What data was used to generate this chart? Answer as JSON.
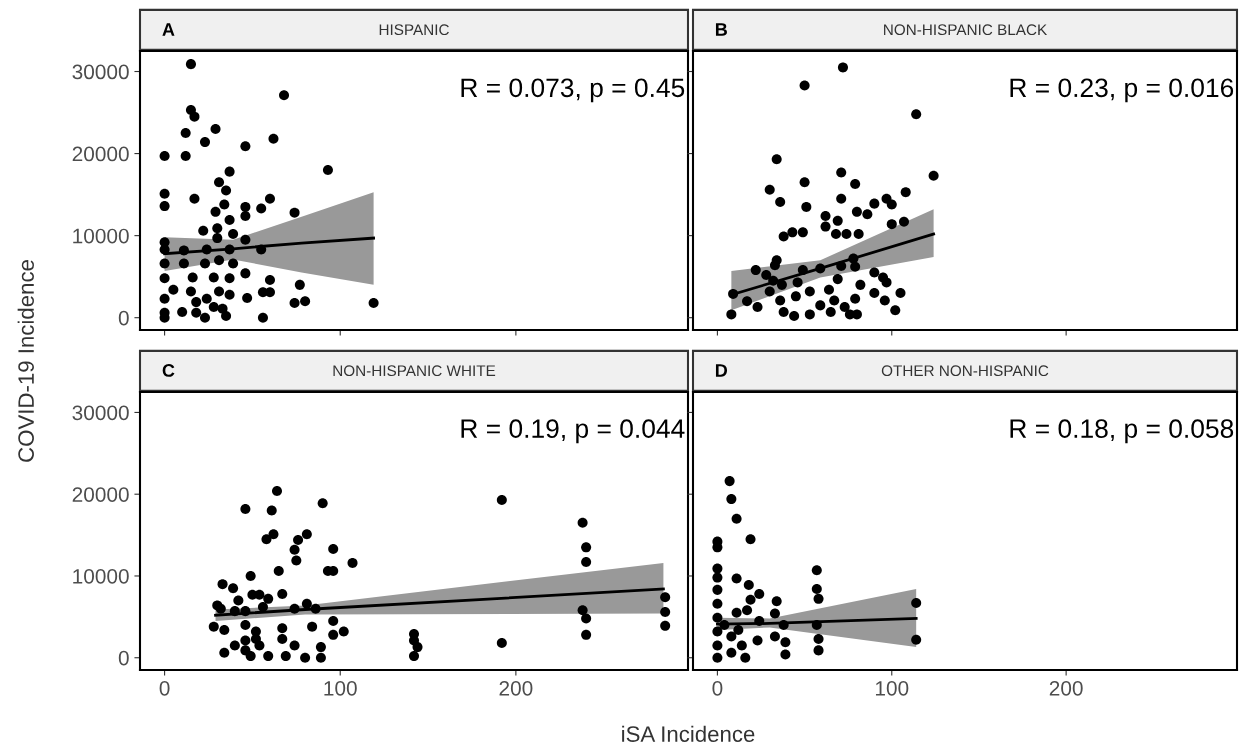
{
  "chart_data": [
    {
      "type": "scatter",
      "title": "HISPANIC",
      "ylabel": "COVID-19 Incidence",
      "annotations": [
        "A",
        "R = 0.073, p = 0.45"
      ],
      "tick_labels": "y",
      "xlim": [
        -14,
        298
      ],
      "ylim": [
        -1500,
        32500
      ],
      "xticks": [
        0,
        100,
        200
      ],
      "yticks": [
        0,
        10000,
        20000,
        30000
      ],
      "series": [
        {
          "marker": "circle",
          "color": "#000000",
          "x": [
            15,
            68,
            15,
            17,
            12,
            29,
            23,
            46,
            62,
            0,
            12,
            93,
            37,
            31,
            35,
            0,
            0,
            17,
            34,
            46,
            46,
            55,
            60,
            74,
            29,
            37,
            22,
            30,
            39,
            30,
            46,
            0,
            0,
            11,
            24,
            37,
            55,
            0,
            11,
            23,
            31,
            39,
            46,
            0,
            16,
            28,
            37,
            60,
            77,
            5,
            0,
            15,
            31,
            37,
            47,
            56,
            60,
            74,
            80,
            119,
            0,
            10,
            18,
            23,
            35,
            56,
            28,
            33,
            0,
            18,
            24
          ],
          "values": [
            30900,
            27100,
            25300,
            24500,
            22500,
            23000,
            21400,
            20900,
            21800,
            19700,
            19700,
            18000,
            17800,
            16500,
            15500,
            15100,
            13600,
            14500,
            13800,
            13500,
            12400,
            13300,
            14500,
            12800,
            12900,
            11900,
            10600,
            10900,
            10200,
            9700,
            9500,
            9200,
            8300,
            8200,
            8300,
            8300,
            8300,
            6600,
            6600,
            6600,
            7000,
            6600,
            5400,
            4800,
            4900,
            4900,
            4800,
            4600,
            4000,
            3400,
            2300,
            3200,
            3200,
            2800,
            2400,
            3100,
            3100,
            1800,
            2000,
            1800,
            600,
            700,
            600,
            0,
            200,
            0,
            1300,
            1100,
            0,
            1900,
            2300
          ]
        },
        {
          "type": "line",
          "color": "#000000",
          "x": [
            0,
            39,
            78,
            119
          ],
          "values": [
            7800,
            8400,
            9100,
            9700
          ],
          "lower": [
            5700,
            7100,
            5500,
            4000
          ],
          "upper": [
            9800,
            9500,
            12300,
            15300
          ]
        }
      ]
    },
    {
      "type": "scatter",
      "title": "NON-HISPANIC BLACK",
      "annotations": [
        "B",
        "R = 0.23, p = 0.016"
      ],
      "tick_labels": false,
      "xlim": [
        -14,
        298
      ],
      "ylim": [
        -1500,
        32500
      ],
      "xticks": [
        0,
        100,
        200
      ],
      "yticks": [
        0,
        10000,
        20000,
        30000
      ],
      "series": [
        {
          "marker": "circle",
          "color": "#000000",
          "x": [
            72,
            50,
            114,
            34,
            124,
            71,
            50,
            79,
            30,
            108,
            36,
            71,
            51,
            97,
            100,
            90,
            80,
            86,
            62,
            69,
            62,
            100,
            107,
            38,
            43,
            49,
            68,
            74,
            81,
            34,
            33,
            22,
            28,
            49,
            59,
            71,
            79,
            78,
            32,
            37,
            46,
            69,
            82,
            90,
            95,
            97,
            9,
            17,
            23,
            30,
            36,
            45,
            53,
            59,
            64,
            67,
            73,
            79,
            90,
            96,
            105,
            8,
            38,
            44,
            53,
            65,
            76,
            80,
            102
          ],
          "values": [
            30500,
            28300,
            24800,
            19300,
            17300,
            17700,
            16500,
            16300,
            15600,
            15300,
            14100,
            14500,
            13500,
            14500,
            13800,
            13900,
            12900,
            12600,
            12400,
            11800,
            11100,
            11400,
            11700,
            9900,
            10400,
            10400,
            10200,
            10200,
            10200,
            7000,
            6400,
            5800,
            5200,
            5800,
            6000,
            6300,
            6200,
            7200,
            4500,
            4000,
            4300,
            4700,
            4000,
            5500,
            4900,
            4300,
            2900,
            2000,
            1300,
            3200,
            2100,
            2600,
            3200,
            1500,
            3400,
            2100,
            1300,
            2300,
            3000,
            2100,
            3000,
            400,
            700,
            200,
            400,
            700,
            400,
            400,
            900
          ]
        },
        {
          "type": "line",
          "color": "#000000",
          "x": [
            8,
            59,
            124
          ],
          "values": [
            2800,
            6000,
            10200
          ],
          "lower": [
            900,
            4900,
            7400
          ],
          "upper": [
            5700,
            7000,
            13200
          ]
        }
      ]
    },
    {
      "type": "scatter",
      "title": "NON-HISPANIC WHITE",
      "xlabel": "iSA Incidence",
      "annotations": [
        "C",
        "R = 0.19, p = 0.044"
      ],
      "xlim": [
        -14,
        298
      ],
      "ylim": [
        -1500,
        32500
      ],
      "xticks": [
        0,
        100,
        200
      ],
      "yticks": [
        0,
        10000,
        20000,
        30000
      ],
      "series": [
        {
          "marker": "circle",
          "color": "#000000",
          "x": [
            64,
            46,
            61,
            90,
            192,
            238,
            240,
            240,
            62,
            58,
            81,
            76,
            74,
            96,
            75,
            107,
            93,
            96,
            65,
            49,
            33,
            39,
            67,
            50,
            54,
            59,
            42,
            30,
            32,
            40,
            46,
            56,
            74,
            81,
            86,
            238,
            240,
            285,
            285,
            285,
            96,
            84,
            67,
            28,
            34,
            46,
            52,
            102,
            96,
            240,
            192,
            142,
            142,
            144,
            142,
            34,
            40,
            46,
            49,
            54,
            59,
            67,
            69,
            74,
            80,
            89,
            89,
            52,
            46
          ],
          "values": [
            20400,
            18200,
            18000,
            18900,
            19300,
            16500,
            13500,
            11700,
            15100,
            14500,
            15100,
            14400,
            13200,
            13300,
            11900,
            11600,
            10600,
            10600,
            10600,
            10000,
            9000,
            8500,
            7800,
            7700,
            7700,
            7200,
            7000,
            6400,
            6000,
            5700,
            5700,
            6200,
            6000,
            6600,
            6000,
            5800,
            4800,
            7400,
            5600,
            3900,
            4500,
            3800,
            3600,
            3800,
            3400,
            4000,
            3200,
            3200,
            2800,
            2800,
            1800,
            2900,
            2100,
            1300,
            200,
            600,
            1500,
            2100,
            200,
            1500,
            200,
            2300,
            200,
            1500,
            0,
            1300,
            0,
            2300,
            900
          ]
        },
        {
          "type": "line",
          "color": "#000000",
          "x": [
            29,
            80,
            284
          ],
          "values": [
            5200,
            5900,
            8400
          ],
          "lower": [
            4500,
            5300,
            5400
          ],
          "upper": [
            5900,
            6400,
            11600
          ]
        }
      ]
    },
    {
      "type": "scatter",
      "title": "OTHER NON-HISPANIC",
      "annotations": [
        "D",
        "R = 0.18, p = 0.058"
      ],
      "tick_labels": "x",
      "xlim": [
        -14,
        298
      ],
      "ylim": [
        -1500,
        32500
      ],
      "xticks": [
        0,
        100,
        200
      ],
      "yticks": [
        0,
        10000,
        20000,
        30000
      ],
      "series": [
        {
          "marker": "circle",
          "color": "#000000",
          "x": [
            7,
            8,
            11,
            19,
            0,
            0,
            0,
            0,
            0,
            0,
            0,
            0,
            0,
            0,
            11,
            18,
            24,
            19,
            34,
            33,
            57,
            57,
            58,
            114,
            114,
            11,
            17,
            24,
            38,
            57,
            58,
            58,
            8,
            14,
            16,
            23,
            33,
            39,
            39,
            8,
            4,
            12
          ],
          "values": [
            21600,
            19400,
            17000,
            14500,
            14200,
            13500,
            10900,
            9800,
            8300,
            6600,
            4900,
            3200,
            1500,
            0,
            9700,
            8900,
            7800,
            7100,
            6900,
            5400,
            10700,
            8400,
            7200,
            6700,
            2200,
            5500,
            5800,
            4500,
            4000,
            4000,
            2300,
            900,
            2600,
            1500,
            0,
            2100,
            2600,
            1900,
            400,
            600,
            4000,
            3400
          ]
        },
        {
          "type": "line",
          "color": "#000000",
          "x": [
            0,
            30,
            114
          ],
          "values": [
            4100,
            4200,
            4800
          ],
          "lower": [
            3400,
            3700,
            1300
          ],
          "upper": [
            4900,
            4800,
            8400
          ]
        }
      ]
    }
  ]
}
